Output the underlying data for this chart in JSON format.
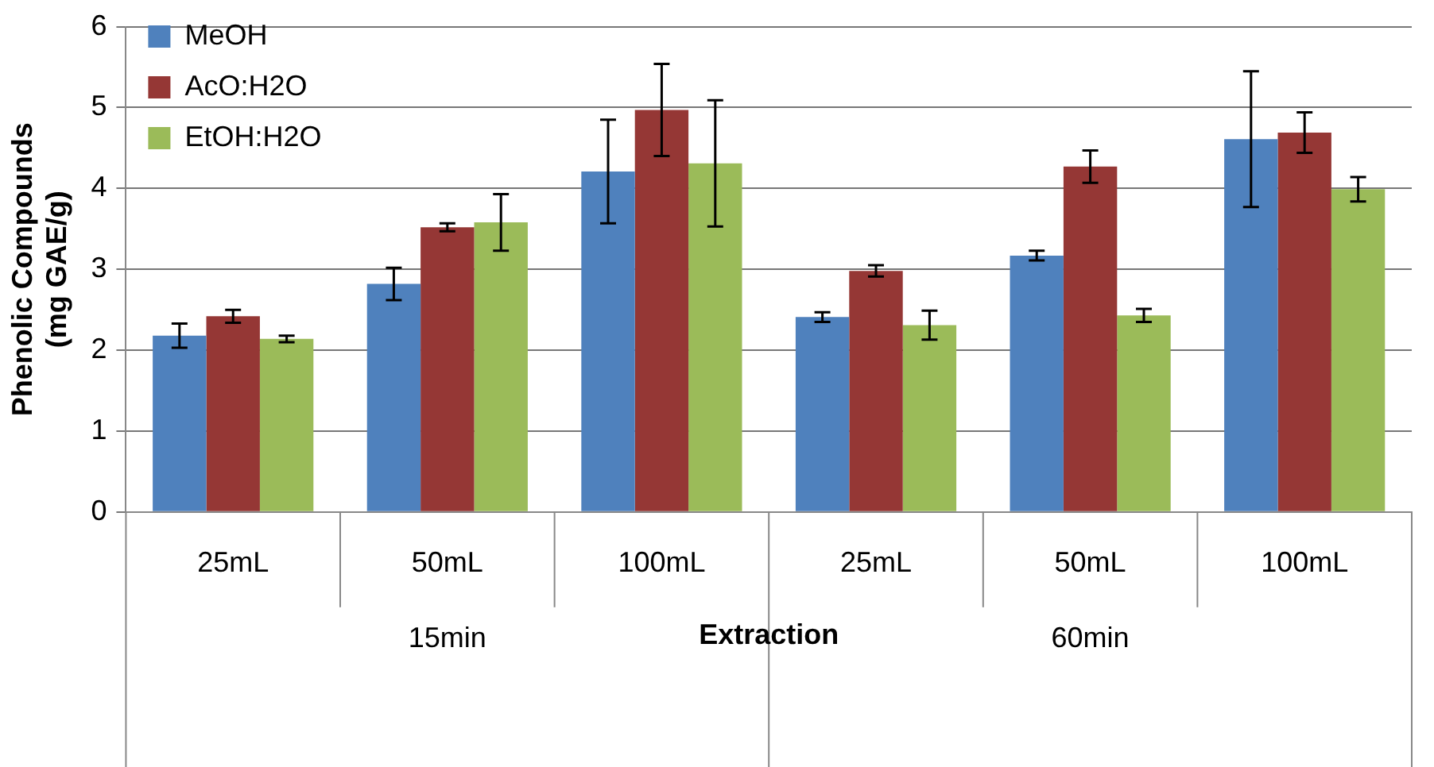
{
  "chart_data": {
    "type": "bar",
    "categories": [
      "25mL",
      "50mL",
      "100mL",
      "25mL",
      "50mL",
      "100mL"
    ],
    "series": [
      {
        "name": "MeOH",
        "color": "#4f81bd",
        "values": [
          2.18,
          2.82,
          4.21,
          2.41,
          3.17,
          4.61
        ],
        "errors": [
          0.15,
          0.2,
          0.64,
          0.06,
          0.06,
          0.84
        ]
      },
      {
        "name": "AcO:H2O",
        "color": "#953735",
        "values": [
          2.42,
          3.52,
          4.97,
          2.98,
          4.27,
          4.69
        ],
        "errors": [
          0.08,
          0.05,
          0.57,
          0.07,
          0.2,
          0.25
        ]
      },
      {
        "name": "EtOH:H2O",
        "color": "#9bbb59",
        "values": [
          2.14,
          3.58,
          4.31,
          2.31,
          2.43,
          3.99
        ],
        "errors": [
          0.04,
          0.35,
          0.78,
          0.18,
          0.08,
          0.15
        ]
      }
    ],
    "xlabel": "Extraction",
    "ylabel": "Phenolic Compounds\n(mg GAE/g)",
    "annotations": [
      "15min",
      "60min"
    ],
    "ylim": [
      0,
      6
    ],
    "yticks": [
      0,
      1,
      2,
      3,
      4,
      5,
      6
    ],
    "grid": "y",
    "legend": "top left"
  }
}
